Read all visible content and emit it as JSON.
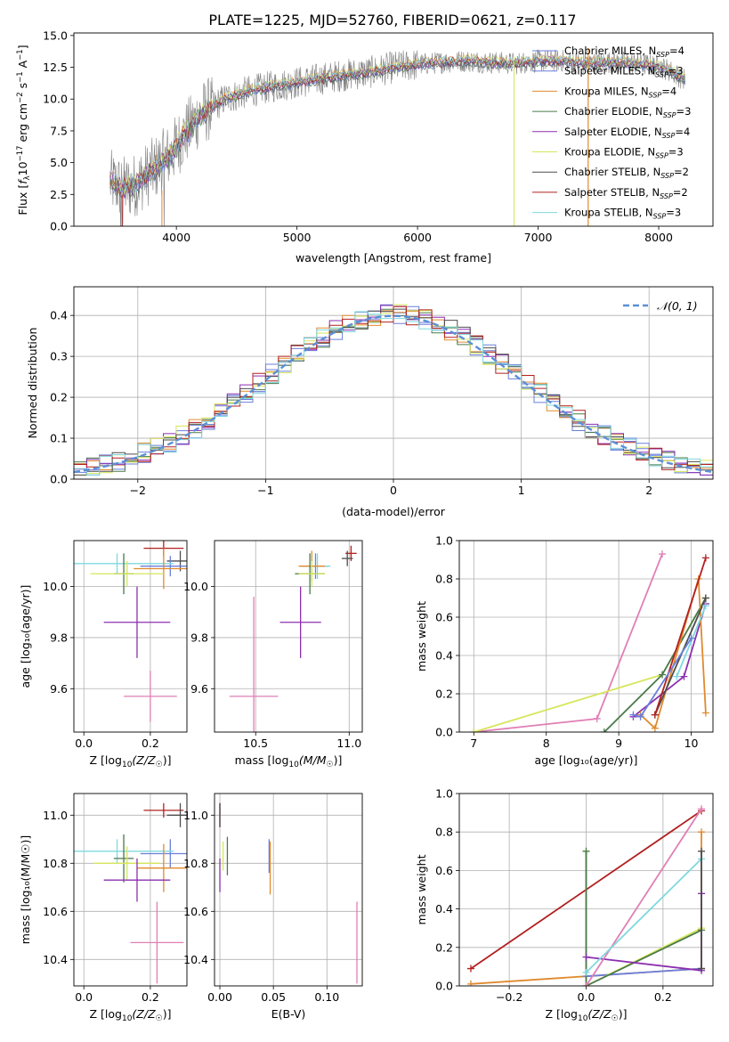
{
  "figure": {
    "title": "PLATE=1225, MJD=52760, FIBERID=0621, z=0.117",
    "colors": {
      "Chabrier MILES": "#6a7fdb",
      "Salpeter MILES": "#6a7fdb",
      "Kroupa MILES": "#e08a2e",
      "Chabrier ELODIE": "#4a7a4a",
      "Salpeter ELODIE": "#8c2fb0",
      "Kroupa ELODIE": "#d6e65a",
      "Chabrier STELIB": "#4d4d4d",
      "Salpeter STELIB": "#b22020",
      "Kroupa STELIB": "#7fd8df",
      "data": "#808080",
      "gauss": "#5b8fd6"
    }
  },
  "chart_data": [
    {
      "id": "spectrum",
      "type": "line",
      "xlabel": "wavelength [Angstrom, rest frame]",
      "ylabel": "Flux [f_λ 10⁻¹⁷ erg cm⁻² s⁻¹ A⁻¹]",
      "xlim": [
        3150,
        8450
      ],
      "ylim": [
        0,
        15.2
      ],
      "xticks": [
        4000,
        5000,
        6000,
        7000,
        8000
      ],
      "yticks": [
        0.0,
        2.5,
        5.0,
        7.5,
        10.0,
        12.5,
        15.0
      ],
      "grid": false,
      "legend_position": "upper-right",
      "continuum": {
        "x": [
          3450,
          3550,
          3650,
          3750,
          3850,
          3950,
          4050,
          4200,
          4400,
          4600,
          4800,
          5000,
          5200,
          5400,
          5600,
          5800,
          6000,
          6200,
          6400,
          6600,
          6800,
          7000,
          7200,
          7400,
          7600,
          7800,
          8000,
          8100,
          8200
        ],
        "y": [
          3.5,
          3.0,
          3.2,
          4.0,
          4.8,
          5.6,
          7.0,
          8.8,
          10.0,
          10.6,
          11.0,
          11.3,
          11.6,
          11.9,
          12.1,
          12.5,
          12.7,
          12.9,
          13.0,
          12.9,
          12.8,
          13.0,
          13.0,
          12.8,
          12.9,
          12.8,
          12.6,
          12.2,
          11.6
        ]
      },
      "series": [
        {
          "name": "Chabrier MILES, N_SSP=4",
          "label_main": "Chabrier MILES, N",
          "label_sub": "SSP",
          "label_tail": "=4"
        },
        {
          "name": "Salpeter MILES, N_SSP=3",
          "label_main": "Salpeter MILES, N",
          "label_sub": "SSP",
          "label_tail": "=3"
        },
        {
          "name": "Kroupa MILES, N_SSP=4",
          "label_main": "Kroupa MILES, N",
          "label_sub": "SSP",
          "label_tail": "=4"
        },
        {
          "name": "Chabrier ELODIE, N_SSP=3",
          "label_main": "Chabrier ELODIE, N",
          "label_sub": "SSP",
          "label_tail": "=3"
        },
        {
          "name": "Salpeter ELODIE, N_SSP=4",
          "label_main": "Salpeter ELODIE, N",
          "label_sub": "SSP",
          "label_tail": "=4"
        },
        {
          "name": "Kroupa ELODIE, N_SSP=3",
          "label_main": "Kroupa ELODIE, N",
          "label_sub": "SSP",
          "label_tail": "=3"
        },
        {
          "name": "Chabrier STELIB, N_SSP=2",
          "label_main": "Chabrier STELIB, N",
          "label_sub": "SSP",
          "label_tail": "=2"
        },
        {
          "name": "Salpeter STELIB, N_SSP=2",
          "label_main": "Salpeter STELIB, N",
          "label_sub": "SSP",
          "label_tail": "=2"
        },
        {
          "name": "Kroupa STELIB, N_SSP=3",
          "label_main": "Kroupa STELIB, N",
          "label_sub": "SSP",
          "label_tail": "=3"
        }
      ]
    },
    {
      "id": "residuals",
      "type": "histogram",
      "xlabel": "(data-model)/error",
      "ylabel": "Normed distribution",
      "xlim": [
        -2.5,
        2.5
      ],
      "ylim": [
        0,
        0.47
      ],
      "xticks": [
        -2,
        -1,
        0,
        1,
        2
      ],
      "yticks": [
        0.0,
        0.1,
        0.2,
        0.3,
        0.4
      ],
      "grid": true,
      "legend_position": "upper-right",
      "gauss_label": "𝒩(0, 1)",
      "bin_width": 0.1
    },
    {
      "id": "age_vs_Z",
      "type": "errorbar",
      "xlabel_main": "Z [log",
      "xlabel_sub": "10",
      "xlabel_tail": "(Z/Z",
      "xlabel_end": ")]",
      "ylabel": "age  [log₁₀(age/yr)]",
      "xlim": [
        -0.03,
        0.31
      ],
      "ylim": [
        9.43,
        10.18
      ],
      "xticks": [
        0.0,
        0.2
      ],
      "yticks": [
        9.6,
        9.8,
        10.0
      ],
      "grid": true,
      "points": [
        {
          "series": "Salpeter STELIB",
          "x": 0.24,
          "xerr": 0.06,
          "y": 10.15,
          "yerr": 0.03
        },
        {
          "series": "Chabrier STELIB",
          "x": 0.29,
          "xerr": 0.04,
          "y": 10.1,
          "yerr": 0.04
        },
        {
          "series": "Chabrier MILES",
          "x": 0.26,
          "xerr": 0.09,
          "y": 10.08,
          "yerr": 0.04
        },
        {
          "series": "Kroupa STELIB",
          "x": 0.1,
          "xerr": 0.17,
          "y": 10.09,
          "yerr": 0.04
        },
        {
          "series": "Kroupa MILES",
          "x": 0.24,
          "xerr": 0.09,
          "y": 10.07,
          "yerr": 0.08
        },
        {
          "series": "Chabrier ELODIE",
          "x": 0.12,
          "xerr": 0.03,
          "y": 10.05,
          "yerr": 0.08
        },
        {
          "series": "Kroupa ELODIE",
          "x": 0.13,
          "xerr": 0.11,
          "y": 10.05,
          "yerr": 0.05
        },
        {
          "series": "Salpeter ELODIE",
          "x": 0.16,
          "xerr": 0.1,
          "y": 9.86,
          "yerr": 0.14
        },
        {
          "series": "Kroupa pink",
          "x": 0.2,
          "xerr": 0.08,
          "y": 9.57,
          "yerr": 0.1
        }
      ]
    },
    {
      "id": "age_vs_mass",
      "type": "errorbar",
      "xlabel_main": "mass [log",
      "xlabel_sub": "10",
      "xlabel_tail": "(M/M",
      "xlabel_end": ")]",
      "xlim": [
        10.28,
        11.07
      ],
      "ylim": [
        9.43,
        10.18
      ],
      "xticks": [
        10.5,
        11.0
      ],
      "yticks": [
        9.6,
        9.8,
        10.0
      ],
      "grid": true,
      "points": [
        {
          "series": "Salpeter STELIB",
          "x": 11.01,
          "xerr": 0.03,
          "y": 10.13,
          "yerr": 0.03
        },
        {
          "series": "Chabrier STELIB",
          "x": 10.99,
          "xerr": 0.03,
          "y": 10.11,
          "yerr": 0.03
        },
        {
          "series": "Chabrier MILES",
          "x": 10.82,
          "xerr": 0.07,
          "y": 10.08,
          "yerr": 0.05
        },
        {
          "series": "Kroupa STELIB",
          "x": 10.83,
          "xerr": 0.07,
          "y": 10.08,
          "yerr": 0.05
        },
        {
          "series": "Kroupa MILES",
          "x": 10.8,
          "xerr": 0.07,
          "y": 10.08,
          "yerr": 0.06
        },
        {
          "series": "Chabrier ELODIE",
          "x": 10.79,
          "xerr": 0.08,
          "y": 10.05,
          "yerr": 0.08
        },
        {
          "series": "Kroupa ELODIE",
          "x": 10.8,
          "xerr": 0.07,
          "y": 10.05,
          "yerr": 0.05
        },
        {
          "series": "Salpeter ELODIE",
          "x": 10.74,
          "xerr": 0.11,
          "y": 9.86,
          "yerr": 0.14
        },
        {
          "series": "Kroupa pink",
          "x": 10.49,
          "xerr": 0.13,
          "y": 9.57,
          "yerr": 0.39
        }
      ]
    },
    {
      "id": "weight_vs_age",
      "type": "line",
      "xlabel": "age  [log₁₀(age/yr)]",
      "ylabel": "mass weight",
      "xlim": [
        6.8,
        10.3
      ],
      "ylim": [
        0,
        1.0
      ],
      "xticks": [
        7,
        8,
        9,
        10
      ],
      "yticks": [
        0.0,
        0.2,
        0.4,
        0.6,
        0.8,
        1.0
      ],
      "grid": true,
      "series": [
        {
          "series": "Kroupa pink",
          "x": [
            7.0,
            8.7,
            9.6
          ],
          "y": [
            0.0,
            0.07,
            0.93
          ]
        },
        {
          "series": "Kroupa ELODIE",
          "x": [
            7.0,
            9.6,
            10.2
          ],
          "y": [
            0.0,
            0.3,
            0.7
          ]
        },
        {
          "series": "Chabrier ELODIE",
          "x": [
            8.8,
            9.6,
            10.2
          ],
          "y": [
            0.0,
            0.3,
            0.7
          ]
        },
        {
          "series": "Salpeter ELODIE",
          "x": [
            9.2,
            9.9,
            10.2
          ],
          "y": [
            0.08,
            0.29,
            0.67
          ]
        },
        {
          "series": "Kroupa MILES",
          "x": [
            9.3,
            9.5,
            10.1,
            10.2
          ],
          "y": [
            0.09,
            0.02,
            0.8,
            0.1
          ]
        },
        {
          "series": "Chabrier STELIB",
          "x": [
            9.5,
            10.2
          ],
          "y": [
            0.09,
            0.7
          ]
        },
        {
          "series": "Salpeter STELIB",
          "x": [
            9.5,
            10.2
          ],
          "y": [
            0.09,
            0.91
          ]
        },
        {
          "series": "Kroupa STELIB",
          "x": [
            9.8,
            10.2
          ],
          "y": [
            0.29,
            0.66
          ]
        },
        {
          "series": "Chabrier MILES",
          "x": [
            9.2,
            9.3,
            10.0
          ],
          "y": [
            0.09,
            0.08,
            0.49
          ]
        }
      ]
    },
    {
      "id": "mass_vs_Z",
      "type": "errorbar",
      "xlabel_main": "Z [log",
      "xlabel_sub": "10",
      "xlabel_tail": "(Z/Z",
      "xlabel_end": ")]",
      "ylabel": "mass [log₁₀(M/M☉)]",
      "xlim": [
        -0.03,
        0.31
      ],
      "ylim": [
        10.29,
        11.09
      ],
      "xticks": [
        0.0,
        0.2
      ],
      "yticks": [
        10.4,
        10.6,
        10.8,
        11.0
      ],
      "grid": true,
      "points": [
        {
          "series": "Salpeter STELIB",
          "x": 0.24,
          "xerr": 0.06,
          "y": 11.02,
          "yerr": 0.03
        },
        {
          "series": "Chabrier STELIB",
          "x": 0.29,
          "xerr": 0.04,
          "y": 11.0,
          "yerr": 0.05
        },
        {
          "series": "Chabrier MILES",
          "x": 0.26,
          "xerr": 0.09,
          "y": 10.84,
          "yerr": 0.06
        },
        {
          "series": "Kroupa STELIB",
          "x": 0.1,
          "xerr": 0.17,
          "y": 10.85,
          "yerr": 0.05
        },
        {
          "series": "Kroupa MILES",
          "x": 0.24,
          "xerr": 0.08,
          "y": 10.78,
          "yerr": 0.1
        },
        {
          "series": "Chabrier ELODIE",
          "x": 0.12,
          "xerr": 0.03,
          "y": 10.82,
          "yerr": 0.1
        },
        {
          "series": "Kroupa ELODIE",
          "x": 0.13,
          "xerr": 0.1,
          "y": 10.8,
          "yerr": 0.07
        },
        {
          "series": "Salpeter ELODIE",
          "x": 0.16,
          "xerr": 0.1,
          "y": 10.73,
          "yerr": 0.09
        },
        {
          "series": "Kroupa pink",
          "x": 0.22,
          "xerr": 0.08,
          "y": 10.47,
          "yerr": 0.17
        }
      ]
    },
    {
      "id": "mass_vs_EBV",
      "type": "errorbar",
      "xlabel": "E(B-V)",
      "xlim": [
        -0.005,
        0.133
      ],
      "ylim": [
        10.29,
        11.09
      ],
      "xticks": [
        0.0,
        0.05,
        0.1
      ],
      "yticks": [
        10.4,
        10.6,
        10.8,
        11.0
      ],
      "grid": true,
      "points": [
        {
          "series": "Salpeter STELIB",
          "x": 0.0,
          "y": 11.0,
          "yerr": 0.05
        },
        {
          "series": "Chabrier STELIB",
          "x": 0.0,
          "y": 11.0,
          "yerr": 0.05
        },
        {
          "series": "Salpeter ELODIE",
          "x": 0.0,
          "y": 10.75,
          "yerr": 0.07
        },
        {
          "series": "Kroupa ELODIE",
          "x": 0.003,
          "y": 10.83,
          "yerr": 0.06
        },
        {
          "series": "Chabrier ELODIE",
          "x": 0.007,
          "y": 10.83,
          "yerr": 0.08
        },
        {
          "series": "Chabrier MILES",
          "x": 0.046,
          "y": 10.83,
          "yerr": 0.07
        },
        {
          "series": "Kroupa MILES",
          "x": 0.047,
          "y": 10.78,
          "yerr": 0.11
        },
        {
          "series": "Kroupa pink",
          "x": 0.128,
          "y": 10.47,
          "yerr": 0.17
        }
      ]
    },
    {
      "id": "weight_vs_Z",
      "type": "line",
      "xlabel_main": "Z [log",
      "xlabel_sub": "10",
      "xlabel_tail": "(Z/Z",
      "xlabel_end": ")]",
      "ylabel": "mass weight",
      "xlim": [
        -0.33,
        0.33
      ],
      "ylim": [
        0,
        1.0
      ],
      "xticks": [
        -0.2,
        0.0,
        0.2
      ],
      "yticks": [
        0.0,
        0.2,
        0.4,
        0.6,
        0.8,
        1.0
      ],
      "grid": true,
      "series": [
        {
          "series": "Salpeter STELIB",
          "x": [
            -0.3,
            0.3
          ],
          "y": [
            0.09,
            0.91
          ]
        },
        {
          "series": "Kroupa MILES",
          "x": [
            -0.3,
            0.0,
            0.3,
            0.3
          ],
          "y": [
            0.01,
            0.05,
            0.09,
            0.8
          ]
        },
        {
          "series": "Chabrier MILES",
          "x": [
            0.0,
            0.3
          ],
          "y": [
            0.05,
            0.09
          ]
        },
        {
          "series": "Kroupa ELODIE",
          "x": [
            0.0,
            0.0,
            0.3
          ],
          "y": [
            0.7,
            0.0,
            0.3
          ]
        },
        {
          "series": "Chabrier ELODIE",
          "x": [
            0.0,
            0.0,
            0.3
          ],
          "y": [
            0.7,
            0.0,
            0.29
          ]
        },
        {
          "series": "Salpeter ELODIE",
          "x": [
            0.0,
            0.3,
            0.3
          ],
          "y": [
            0.15,
            0.08,
            0.48
          ]
        },
        {
          "series": "Kroupa pink",
          "x": [
            0.0,
            0.3
          ],
          "y": [
            0.0,
            0.92
          ]
        },
        {
          "series": "Kroupa STELIB",
          "x": [
            0.0,
            0.3
          ],
          "y": [
            0.07,
            0.66
          ]
        },
        {
          "series": "Chabrier STELIB",
          "x": [
            0.3,
            0.3
          ],
          "y": [
            0.09,
            0.7
          ]
        }
      ]
    }
  ]
}
